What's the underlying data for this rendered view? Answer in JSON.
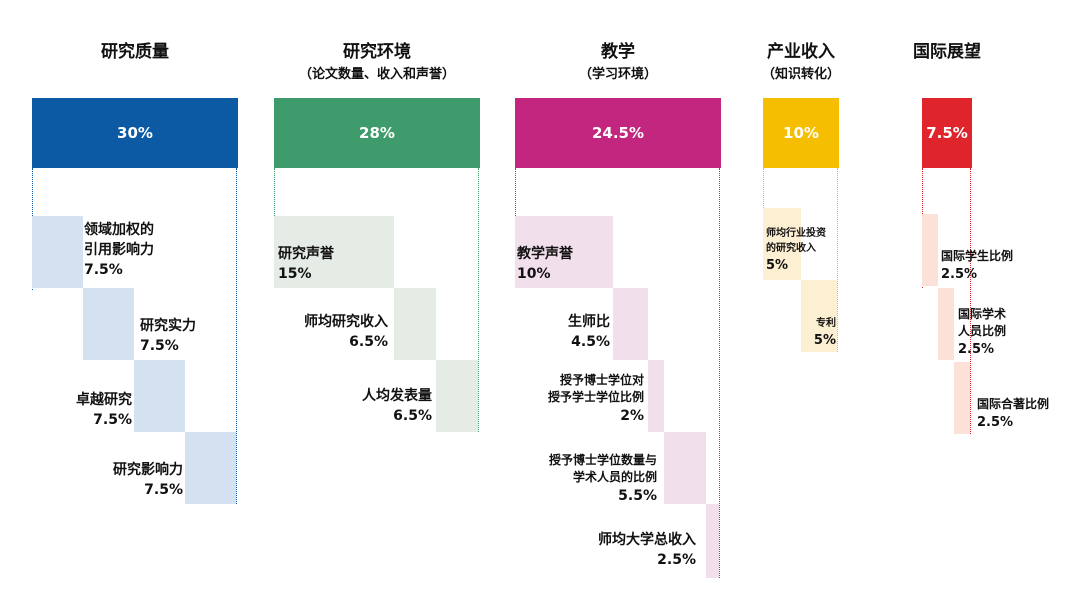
{
  "pillars": [
    {
      "title": "研究质量",
      "subtitle": "",
      "weight": "30%",
      "color": "#0B5AA3",
      "items": [
        {
          "name_lines": [
            "领域加权的",
            "引用影响力"
          ],
          "weight": "7.5%"
        },
        {
          "name_lines": [
            "研究实力"
          ],
          "weight": "7.5%"
        },
        {
          "name_lines": [
            "卓越研究"
          ],
          "weight": "7.5%"
        },
        {
          "name_lines": [
            "研究影响力"
          ],
          "weight": "7.5%"
        }
      ]
    },
    {
      "title": "研究环境",
      "subtitle": "（论文数量、收入和声誉）",
      "weight": "28%",
      "color": "#3E9B6B",
      "items": [
        {
          "name_lines": [
            "研究声誉"
          ],
          "weight": "15%"
        },
        {
          "name_lines": [
            "师均研究收入"
          ],
          "weight": "6.5%"
        },
        {
          "name_lines": [
            "人均发表量"
          ],
          "weight": "6.5%"
        }
      ]
    },
    {
      "title": "教学",
      "subtitle": "（学习环境）",
      "weight": "24.5%",
      "color": "#C2267E",
      "items": [
        {
          "name_lines": [
            "教学声誉"
          ],
          "weight": "10%"
        },
        {
          "name_lines": [
            "生师比"
          ],
          "weight": "4.5%"
        },
        {
          "name_lines": [
            "授予博士学位对",
            "授予学士学位比例"
          ],
          "weight": "2%"
        },
        {
          "name_lines": [
            "授予博士学位数量与",
            "学术人员的比例"
          ],
          "weight": "5.5%"
        },
        {
          "name_lines": [
            "师均大学总收入"
          ],
          "weight": "2.5%"
        }
      ]
    },
    {
      "title": "产业收入",
      "subtitle": "（知识转化）",
      "weight": "10%",
      "color": "#F5BE00",
      "items": [
        {
          "name_lines": [
            "师均行业投资",
            "的研究收入"
          ],
          "weight": "5%"
        },
        {
          "name_lines": [
            "专利"
          ],
          "weight": "5%"
        }
      ]
    },
    {
      "title": "国际展望",
      "subtitle": "",
      "weight": "7.5%",
      "color": "#E0242C",
      "items": [
        {
          "name_lines": [
            "国际学生比例"
          ],
          "weight": "2.5%"
        },
        {
          "name_lines": [
            "国际学术",
            "人员比例"
          ],
          "weight": "2.5%"
        },
        {
          "name_lines": [
            "国际合著比例"
          ],
          "weight": "2.5%"
        }
      ]
    }
  ]
}
